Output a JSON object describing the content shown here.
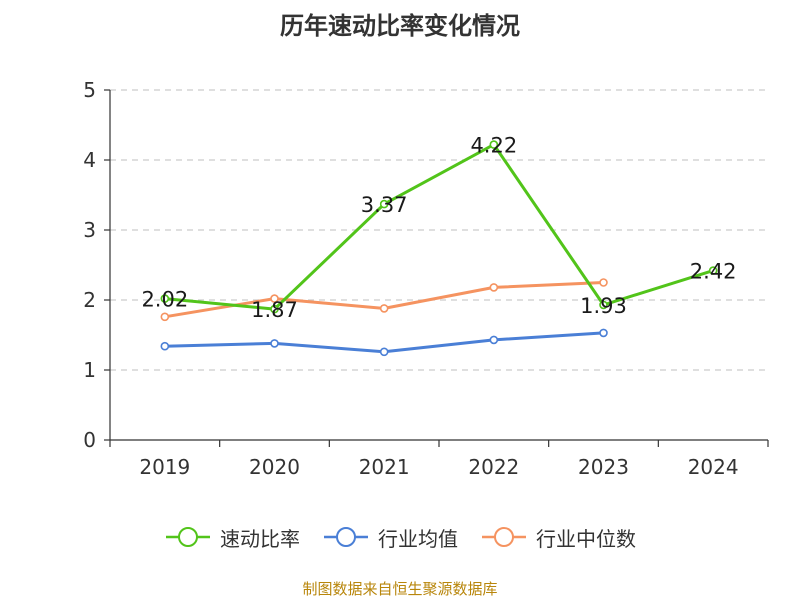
{
  "title": "历年速动比率变化情况",
  "source": "制图数据来自恒生聚源数据库",
  "chart_data": {
    "type": "line",
    "title": "历年速动比率变化情况",
    "categories": [
      "2019",
      "2020",
      "2021",
      "2022",
      "2023",
      "2024"
    ],
    "ylim": [
      0,
      5
    ],
    "yticks": [
      0,
      1,
      2,
      3,
      4,
      5
    ],
    "grid": true,
    "legend_position": "bottom",
    "series": [
      {
        "name": "速动比率",
        "color": "#52c41a",
        "values": [
          2.02,
          1.87,
          3.37,
          4.22,
          1.93,
          2.42
        ],
        "labels": [
          "2.02",
          "1.87",
          "3.37",
          "4.22",
          "1.93",
          "2.42"
        ]
      },
      {
        "name": "行业均值",
        "color": "#4a7fd6",
        "values": [
          1.34,
          1.38,
          1.26,
          1.43,
          1.53,
          null
        ]
      },
      {
        "name": "行业中位数",
        "color": "#f59360",
        "values": [
          1.76,
          2.02,
          1.88,
          2.18,
          2.25,
          null
        ]
      }
    ]
  }
}
